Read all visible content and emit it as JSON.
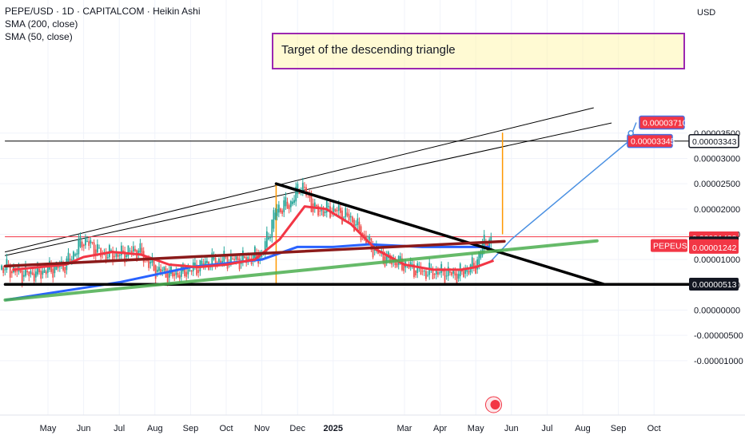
{
  "header": {
    "symbol_line": "PEPE/USD · 1D · CAPITALCOM · Heikin Ashi",
    "indicators": [
      "SMA (200, close)",
      "SMA (50, close)"
    ],
    "currency": "USD"
  },
  "annotation": {
    "text": "Target of the descending triangle"
  },
  "colors": {
    "candle_up": "#26a69a",
    "candle_down": "#ef5350",
    "sma200": "#2962ff",
    "sma50": "#f23645",
    "support_trend": "#4caf50",
    "resistance_red": "#8b1a1a",
    "triangle_lines": "#000000",
    "target_box_border": "#9c27b0",
    "projection": "#4a90e2",
    "vertical_markers": "#ff9800"
  },
  "chart_data": {
    "type": "candlestick",
    "title": "PEPE/USD · 1D · CAPITALCOM · Heikin Ashi",
    "y_axis": {
      "range": [
        -1.2e-06,
        4e-06
      ],
      "ticks": [
        "0.00003500",
        "0.00003000",
        "0.00002500",
        "0.00002000",
        "0.00001500",
        "0.00001000",
        "0.00000500",
        "0.00000000",
        "-0.00000500",
        "-0.00001000"
      ],
      "tick_values": [
        3.5e-06,
        3e-06,
        2.5e-06,
        2e-06,
        1.5e-06,
        1e-06,
        5e-07,
        0,
        -5e-07,
        -1e-06
      ]
    },
    "x_axis": {
      "labels": [
        "May",
        "Jun",
        "Jul",
        "Aug",
        "Sep",
        "Oct",
        "Nov",
        "Dec",
        "2025",
        "Mar",
        "Apr",
        "May",
        "Jun",
        "Jul",
        "Aug",
        "Sep",
        "Oct"
      ],
      "month_index": [
        0,
        1,
        2,
        3,
        4,
        5,
        6,
        7,
        8,
        10,
        11,
        12,
        13,
        14,
        15,
        16,
        17
      ]
    },
    "price_labels": [
      {
        "value": "0.00003710",
        "price": 3.71e-06,
        "style": "target-top"
      },
      {
        "value": "0.00003345",
        "price": 3.345e-06,
        "style": "target"
      },
      {
        "value": "0.00003343",
        "price": 3.343e-06,
        "style": "line"
      },
      {
        "value": "0.00001428",
        "price": 1.428e-06,
        "style": "red"
      },
      {
        "value": "0.00001331",
        "price": 1.331e-06,
        "style": "dark"
      },
      {
        "value": "0.00001276",
        "price": 1.276e-06,
        "style": "red",
        "tag": "PEPEUSD"
      },
      {
        "value": "0.00001242",
        "price": 1.242e-06,
        "style": "red"
      },
      {
        "value": "0.00000513",
        "price": 5.13e-07,
        "style": "dark"
      }
    ],
    "series": [
      {
        "name": "PEPE/USD",
        "kind": "candles",
        "approx_close_by_month": [
          {
            "month": 0.0,
            "price": 8e-07
          },
          {
            "month": 0.5,
            "price": 9e-07
          },
          {
            "month": 1.0,
            "price": 1.4e-06
          },
          {
            "month": 1.5,
            "price": 1.1e-06
          },
          {
            "month": 2.0,
            "price": 1.1e-06
          },
          {
            "month": 2.5,
            "price": 1.2e-06
          },
          {
            "month": 3.0,
            "price": 8e-07
          },
          {
            "month": 3.5,
            "price": 7e-07
          },
          {
            "month": 4.0,
            "price": 8e-07
          },
          {
            "month": 4.5,
            "price": 9.5e-07
          },
          {
            "month": 5.0,
            "price": 1e-06
          },
          {
            "month": 5.5,
            "price": 1e-06
          },
          {
            "month": 6.0,
            "price": 1.1e-06
          },
          {
            "month": 6.4,
            "price": 2e-06
          },
          {
            "month": 6.8,
            "price": 2.1e-06
          },
          {
            "month": 7.1,
            "price": 2.5e-06
          },
          {
            "month": 7.5,
            "price": 1.95e-06
          },
          {
            "month": 8.0,
            "price": 2e-06
          },
          {
            "month": 8.5,
            "price": 1.8e-06
          },
          {
            "month": 9.0,
            "price": 1.3e-06
          },
          {
            "month": 9.5,
            "price": 1e-06
          },
          {
            "month": 10.0,
            "price": 9e-07
          },
          {
            "month": 10.5,
            "price": 7.5e-07
          },
          {
            "month": 11.0,
            "price": 7.5e-07
          },
          {
            "month": 11.5,
            "price": 7e-07
          },
          {
            "month": 12.0,
            "price": 9e-07
          },
          {
            "month": 12.25,
            "price": 1.4e-06
          },
          {
            "month": 12.45,
            "price": 1.28e-06
          }
        ]
      },
      {
        "name": "SMA (200, close)",
        "kind": "line",
        "points": [
          {
            "month": -1.2,
            "price": 2e-07
          },
          {
            "month": 2.0,
            "price": 5.5e-07
          },
          {
            "month": 4.0,
            "price": 8.5e-07
          },
          {
            "month": 6.0,
            "price": 1e-06
          },
          {
            "month": 7.0,
            "price": 1.25e-06
          },
          {
            "month": 8.0,
            "price": 1.25e-06
          },
          {
            "month": 9.0,
            "price": 1.3e-06
          },
          {
            "month": 10.5,
            "price": 1.25e-06
          },
          {
            "month": 12.4,
            "price": 1.25e-06
          }
        ]
      },
      {
        "name": "SMA (50, close)",
        "kind": "line",
        "points": [
          {
            "month": -1.0,
            "price": 8e-07
          },
          {
            "month": 0.5,
            "price": 9e-07
          },
          {
            "month": 1.0,
            "price": 1.05e-06
          },
          {
            "month": 1.8,
            "price": 1.15e-06
          },
          {
            "month": 2.6,
            "price": 1.1e-06
          },
          {
            "month": 3.4,
            "price": 9e-07
          },
          {
            "month": 4.2,
            "price": 8.5e-07
          },
          {
            "month": 5.0,
            "price": 9e-07
          },
          {
            "month": 5.8,
            "price": 1e-06
          },
          {
            "month": 6.5,
            "price": 1.4e-06
          },
          {
            "month": 7.2,
            "price": 2.05e-06
          },
          {
            "month": 7.8,
            "price": 2e-06
          },
          {
            "month": 8.5,
            "price": 1.7e-06
          },
          {
            "month": 9.2,
            "price": 1.2e-06
          },
          {
            "month": 10.0,
            "price": 9e-07
          },
          {
            "month": 10.8,
            "price": 8e-07
          },
          {
            "month": 11.6,
            "price": 8e-07
          },
          {
            "month": 12.0,
            "price": 8.5e-07
          },
          {
            "month": 12.5,
            "price": 9.8e-07
          }
        ]
      }
    ],
    "drawings": [
      {
        "name": "descending-triangle-upper",
        "from": {
          "month": 6.4,
          "price": 2.5e-06
        },
        "to": {
          "month": 15.6,
          "price": 5.1e-07
        },
        "color": "#000000"
      },
      {
        "name": "descending-triangle-base",
        "from": {
          "month": -1.2,
          "price": 5.1e-07
        },
        "to": {
          "month": 19.0,
          "price": 5.1e-07
        },
        "color": "#000000"
      },
      {
        "name": "support-trendline",
        "from": {
          "month": -1.2,
          "price": 2e-07
        },
        "to": {
          "month": 15.4,
          "price": 1.37e-06
        },
        "color": "#4caf50"
      },
      {
        "name": "resistance-trendline",
        "from": {
          "month": -1.2,
          "price": 8.7e-07
        },
        "to": {
          "month": 12.8,
          "price": 1.36e-06
        },
        "color": "#8b1a1a"
      },
      {
        "name": "channel-line-upper",
        "from": {
          "month": -1.2,
          "price": 1.15e-06
        },
        "to": {
          "month": 15.3,
          "price": 4e-06
        },
        "color": "#000000"
      },
      {
        "name": "channel-line-lower",
        "from": {
          "month": -1.2,
          "price": 1.08e-06
        },
        "to": {
          "month": 15.8,
          "price": 3.7e-06
        },
        "color": "#000000"
      },
      {
        "name": "target-horizontal",
        "from": {
          "month": -1.2,
          "price": 3.343e-06
        },
        "to": {
          "month": 19.0,
          "price": 3.343e-06
        },
        "color": "#000000"
      },
      {
        "name": "price-horizontal-red",
        "from": {
          "month": -1.2,
          "price": 1.45e-06
        },
        "to": {
          "month": 19.0,
          "price": 1.45e-06
        },
        "color": "#f23645"
      },
      {
        "name": "projection-path",
        "points": [
          {
            "month": 12.4,
            "price": 9.5e-07
          },
          {
            "month": 13.0,
            "price": 1.4e-06
          },
          {
            "month": 16.3,
            "price": 3.345e-06
          },
          {
            "month": 16.5,
            "price": 3.71e-06
          }
        ],
        "color": "#4a90e2"
      },
      {
        "name": "triangle-height-marker",
        "from": {
          "month": 6.4,
          "price": 2.5e-06
        },
        "to": {
          "month": 6.4,
          "price": 5.1e-07
        },
        "color": "#ff9800"
      },
      {
        "name": "target-measure-marker",
        "from": {
          "month": 12.75,
          "price": 3.5e-06
        },
        "to": {
          "month": 12.75,
          "price": 1.51e-06
        },
        "color": "#ff9800"
      }
    ]
  }
}
